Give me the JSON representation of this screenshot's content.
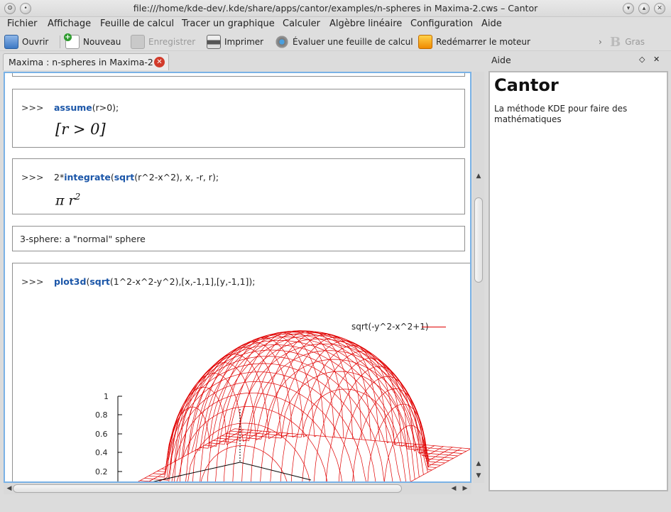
{
  "window": {
    "title": "file:///home/kde-dev/.kde/share/apps/cantor/examples/n-spheres in Maxima-2.cws – Cantor"
  },
  "menu": [
    "Fichier",
    "Affichage",
    "Feuille de calcul",
    "Tracer un graphique",
    "Calculer",
    "Algèbre linéaire",
    "Configuration",
    "Aide"
  ],
  "toolbar": {
    "open": "Ouvrir",
    "new": "Nouveau",
    "save": "Enregistrer",
    "print": "Imprimer",
    "evaluate": "Évaluer une feuille de calcul",
    "restart": "Redémarrer le moteur",
    "bold": "Gras",
    "more": "›"
  },
  "tab": {
    "label": "Maxima : n-spheres in Maxima-2"
  },
  "entries": [
    {
      "prompt": ">>>",
      "command_kw": "assume",
      "command_rest": "(r>0);",
      "result": "[r > 0]"
    },
    {
      "prompt": ">>>",
      "command_pre": "2*",
      "command_kw": "integrate",
      "command_mid": "(",
      "command_kw2": "sqrt",
      "command_rest": "(r^2-x^2), x, -r, r);",
      "result_base": "π r",
      "result_exp": "2"
    },
    {
      "text": "3-sphere: a \"normal\" sphere"
    },
    {
      "prompt": ">>>",
      "command_kw": "plot3d",
      "command_mid": "(",
      "command_kw2": "sqrt",
      "command_rest": "(1^2-x^2-y^2),[x,-1,1],[y,-1,1]);"
    }
  ],
  "plot": {
    "legend": "sqrt(-y^2-x^2+1)",
    "z_ticks": [
      "1",
      "0.8",
      "0.6",
      "0.4",
      "0.2"
    ],
    "color": "#e00000"
  },
  "help": {
    "panel_title": "Aide",
    "heading": "Cantor",
    "text": "La méthode KDE pour faire des mathématiques"
  }
}
